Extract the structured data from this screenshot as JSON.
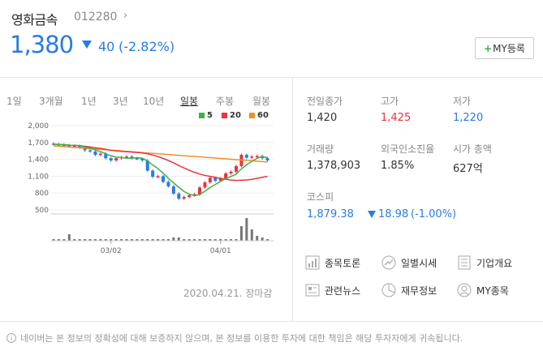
{
  "stock": {
    "name": "영화금속",
    "code": "012280",
    "price": "1,380",
    "change_value": "40",
    "change_pct": "(-2.82%)",
    "my_button": "MY등록"
  },
  "tabs": [
    "1일",
    "3개월",
    "1년",
    "3년",
    "10년",
    "일봉",
    "주봉",
    "월봉"
  ],
  "active_tab": "일봉",
  "legend": [
    {
      "label": "5",
      "color": "#3bb14a"
    },
    {
      "label": "20",
      "color": "#e8343c"
    },
    {
      "label": "60",
      "color": "#f0902a"
    }
  ],
  "chart_data": {
    "type": "candlestick",
    "yticks": [
      "2,000",
      "1,700",
      "1,400",
      "1,100",
      "800",
      "500"
    ],
    "xticks": [
      "03/02",
      "04/01"
    ],
    "close_prices": [
      1670,
      1660,
      1650,
      1630,
      1640,
      1610,
      1560,
      1540,
      1480,
      1500,
      1420,
      1380,
      1420,
      1440,
      1450,
      1420,
      1410,
      1380,
      1200,
      1090,
      1100,
      1000,
      920,
      790,
      700,
      730,
      760,
      780,
      900,
      990,
      1070,
      1020,
      1060,
      1150,
      1180,
      1280,
      1480,
      1430,
      1450,
      1460,
      1420,
      1380
    ]
  },
  "date_status": "2020.04.21. 장마감",
  "info": {
    "prev_close_label": "전일종가",
    "prev_close": "1,420",
    "high_label": "고가",
    "high": "1,425",
    "low_label": "저가",
    "low": "1,220",
    "volume_label": "거래량",
    "volume": "1,378,903",
    "foreign_label": "외국인소진율",
    "foreign": "1.85%",
    "mcap_label": "시가 총액",
    "mcap": "627억"
  },
  "kospi": {
    "label": "코스피",
    "value": "1,879.38",
    "change": "18.98",
    "pct": "(-1.00%)"
  },
  "links": [
    {
      "label": "종목토론",
      "icon": "chart-bar-icon"
    },
    {
      "label": "일별시세",
      "icon": "trend-icon"
    },
    {
      "label": "기업개요",
      "icon": "document-icon"
    },
    {
      "label": "관련뉴스",
      "icon": "news-icon"
    },
    {
      "label": "재무정보",
      "icon": "pie-icon"
    },
    {
      "label": "MY종목",
      "icon": "user-icon"
    }
  ],
  "disclaimer": "네이버는 본 정보의 정확성에 대해 보증하지 않으며, 본 정보를 이용한 투자에 대한 책임은 해당 투자자에게 귀속됩니다."
}
